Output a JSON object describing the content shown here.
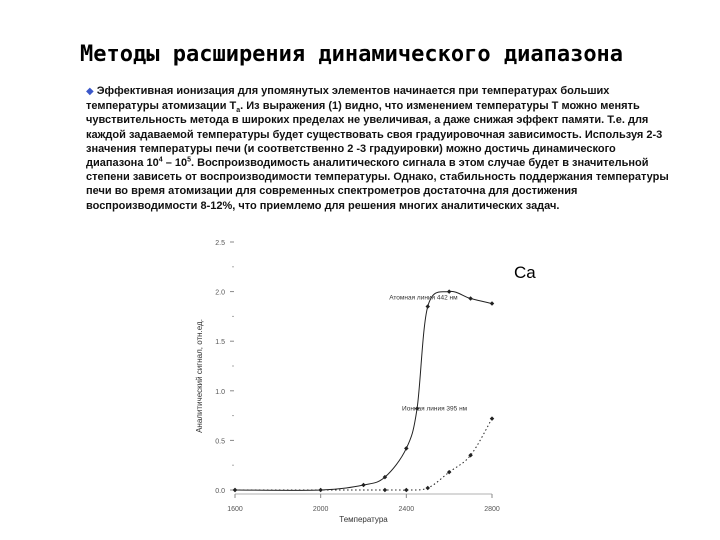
{
  "slide": {
    "title": "Методы расширения динамического диапазона",
    "bullet_icon": "diamond-bullet-icon",
    "paragraph": {
      "t1": "Эффективная ионизация для упомянутых элементов начинается при температурах больших температуры атомизации T",
      "sub_a": "a",
      "t2": ". Из выражения (1) видно, что изменением температуры Т можно менять чувствительность метода в широких пределах не увеличивая, а даже снижая эффект памяти. Т.е. для каждой задаваемой температуры будет существовать своя градуировочная зависимость. Используя 2-3 значения температуры печи (и соответственно 2 -3 градуировки) можно достичь динамического диапазона 10",
      "sup_4": "4",
      "t3": " – 10",
      "sup_5": "5",
      "t4": ". Воспроизводимость аналитического сигнала в этом случае будет в значительной степени зависеть от воспроизводимости температуры. Однако, стабильность поддержания температуры печи во время атомизации для современных спектрометров достаточна для достижения воспроизводимости 8-12%, что приемлемо для решения многих аналитических задач."
    },
    "element_label": "Ca"
  },
  "chart_data": {
    "type": "line",
    "xlabel": "Температура",
    "ylabel": "Аналитический сигнал, отн.ед.",
    "x_ticks": [
      1600,
      2000,
      2400,
      2800
    ],
    "y_ticks": [
      "0.0",
      "0.5",
      "1.0",
      "1.5",
      "2.0",
      "2.5"
    ],
    "xlim": [
      1600,
      2800
    ],
    "ylim": [
      0,
      2.5
    ],
    "series": [
      {
        "name": "Атомная линия 442 нм",
        "style": "solid",
        "color": "#222222",
        "x": [
          1600,
          2000,
          2200,
          2300,
          2400,
          2450,
          2500,
          2600,
          2700,
          2800
        ],
        "y": [
          0.0,
          0.0,
          0.05,
          0.13,
          0.42,
          0.82,
          1.85,
          2.0,
          1.93,
          1.88
        ]
      },
      {
        "name": "Ионная линия 395 нм",
        "style": "dotted",
        "color": "#222222",
        "x": [
          1600,
          2300,
          2400,
          2500,
          2600,
          2700,
          2800
        ],
        "y": [
          0.0,
          0.0,
          0.0,
          0.02,
          0.18,
          0.35,
          0.72
        ]
      }
    ]
  }
}
